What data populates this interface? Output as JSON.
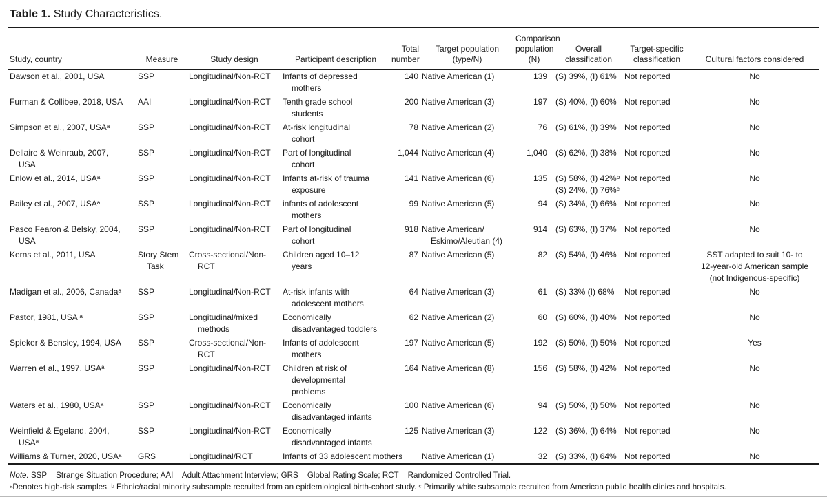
{
  "title": {
    "label": "Table 1.",
    "text": "Study Characteristics."
  },
  "table": {
    "columns": [
      {
        "key": "study",
        "label": "Study, country"
      },
      {
        "key": "measure",
        "label": "Measure"
      },
      {
        "key": "design",
        "label": "Study design"
      },
      {
        "key": "participants",
        "label": "Participant description"
      },
      {
        "key": "total",
        "label": "Total\nnumber"
      },
      {
        "key": "target",
        "label": "Target population\n(type/N)"
      },
      {
        "key": "comparison",
        "label": "Comparison\npopulation\n(N)"
      },
      {
        "key": "overall",
        "label": "Overall\nclassification"
      },
      {
        "key": "target_specific",
        "label": "Target-specific\nclassification"
      },
      {
        "key": "cultural",
        "label": "Cultural factors considered"
      }
    ],
    "rows": [
      {
        "study": "Dawson et al., 2001, USA",
        "measure": "SSP",
        "design": "Longitudinal/Non-RCT",
        "participants": "Infants of depressed\nmothers",
        "total": "140",
        "target": "Native American (1)",
        "comparison": "139",
        "overall": "(S) 39%, (I) 61%",
        "target_specific": "Not reported",
        "cultural": "No"
      },
      {
        "study": "Furman & Collibee, 2018, USA",
        "measure": "AAI",
        "design": "Longitudinal/Non-RCT",
        "participants": "Tenth grade school\nstudents",
        "total": "200",
        "target": "Native American (3)",
        "comparison": "197",
        "overall": "(S) 40%, (I) 60%",
        "target_specific": "Not reported",
        "cultural": "No"
      },
      {
        "study": "Simpson et al., 2007, USAᵃ",
        "measure": "SSP",
        "design": "Longitudinal/Non-RCT",
        "participants": "At-risk longitudinal\ncohort",
        "total": "78",
        "target": "Native American (2)",
        "comparison": "76",
        "overall": "(S) 61%, (I) 39%",
        "target_specific": "Not reported",
        "cultural": "No"
      },
      {
        "study": "Dellaire & Weinraub, 2007,\nUSA",
        "measure": "SSP",
        "design": "Longitudinal/Non-RCT",
        "participants": "Part of longitudinal\ncohort",
        "total": "1,044",
        "target": "Native American (4)",
        "comparison": "1,040",
        "overall": "(S) 62%, (I) 38%",
        "target_specific": "Not reported",
        "cultural": "No"
      },
      {
        "study": "Enlow et al., 2014, USAᵃ",
        "measure": "SSP",
        "design": "Longitudinal/Non-RCT",
        "participants": "Infants at-risk of trauma\nexposure",
        "total": "141",
        "target": "Native American (6)",
        "comparison": "135",
        "overall": "(S) 58%, (I) 42%ᵇ\n(S) 24%, (I) 76%ᶜ",
        "target_specific": "Not reported",
        "cultural": "No"
      },
      {
        "study": "Bailey et al., 2007, USAᵃ",
        "measure": "SSP",
        "design": "Longitudinal/Non-RCT",
        "participants": "infants of adolescent\nmothers",
        "total": "99",
        "target": "Native American (5)",
        "comparison": "94",
        "overall": "(S) 34%, (I) 66%",
        "target_specific": "Not reported",
        "cultural": "No"
      },
      {
        "study": "Pasco Fearon & Belsky, 2004,\nUSA",
        "measure": "SSP",
        "design": "Longitudinal/Non-RCT",
        "participants": "Part of longitudinal\ncohort",
        "total": "918",
        "target": "Native American/\nEskimo/Aleutian (4)",
        "comparison": "914",
        "overall": "(S) 63%, (I) 37%",
        "target_specific": "Not reported",
        "cultural": "No"
      },
      {
        "study": "Kerns et al., 2011, USA",
        "measure": "Story Stem\nTask",
        "design": "Cross-sectional/Non-\nRCT",
        "participants": "Children aged 10–12\nyears",
        "total": "87",
        "target": "Native American (5)",
        "comparison": "82",
        "overall": "(S) 54%, (I) 46%",
        "target_specific": "Not reported",
        "cultural": "SST adapted to suit 10- to\n12-year-old American sample\n(not Indigenous-specific)"
      },
      {
        "study": "Madigan et al., 2006, Canadaᵃ",
        "measure": "SSP",
        "design": "Longitudinal/Non-RCT",
        "participants": "At-risk infants with\nadolescent mothers",
        "total": "64",
        "target": "Native American (3)",
        "comparison": "61",
        "overall": "(S) 33% (I) 68%",
        "target_specific": "Not reported",
        "cultural": "No"
      },
      {
        "study": "Pastor, 1981, USA ᵃ",
        "measure": "SSP",
        "design": "Longitudinal/mixed\nmethods",
        "participants": "Economically\ndisadvantaged toddlers",
        "total": "62",
        "target": "Native American (2)",
        "comparison": "60",
        "overall": "(S) 60%, (I) 40%",
        "target_specific": "Not reported",
        "cultural": "No"
      },
      {
        "study": "Spieker & Bensley, 1994, USA",
        "measure": "SSP",
        "design": "Cross-sectional/Non-\nRCT",
        "participants": "Infants of adolescent\nmothers",
        "total": "197",
        "target": "Native American (5)",
        "comparison": "192",
        "overall": "(S) 50%, (I) 50%",
        "target_specific": "Not reported",
        "cultural": "Yes"
      },
      {
        "study": "Warren et al., 1997, USAᵃ",
        "measure": "SSP",
        "design": "Longitudinal/Non-RCT",
        "participants": "Children at risk of\ndevelopmental\nproblems",
        "total": "164",
        "target": "Native American (8)",
        "comparison": "156",
        "overall": "(S) 58%, (I) 42%",
        "target_specific": "Not reported",
        "cultural": "No"
      },
      {
        "study": "Waters et al., 1980, USAᵃ",
        "measure": "SSP",
        "design": "Longitudinal/Non-RCT",
        "participants": "Economically\ndisadvantaged infants",
        "total": "100",
        "target": "Native American (6)",
        "comparison": "94",
        "overall": "(S) 50%, (I) 50%",
        "target_specific": "Not reported",
        "cultural": "No"
      },
      {
        "study": "Weinfield & Egeland, 2004,\nUSAᵃ",
        "measure": "SSP",
        "design": "Longitudinal/Non-RCT",
        "participants": "Economically\ndisadvantaged infants",
        "total": "125",
        "target": "Native American (3)",
        "comparison": "122",
        "overall": "(S) 36%, (I) 64%",
        "target_specific": "Not reported",
        "cultural": "No"
      },
      {
        "study": "Williams & Turner, 2020, USAᵃ",
        "measure": "GRS",
        "design": "Longitudinal/RCT",
        "participants": "Infants of 33 adolescent mothers",
        "total": "",
        "target": "Native American (1)",
        "comparison": "32",
        "overall": "(S) 33%, (I) 64%",
        "target_specific": "Not reported",
        "cultural": "No"
      }
    ]
  },
  "footnotes": {
    "note_label": "Note.",
    "note_body": " SSP = Strange Situation Procedure; AAI = Adult Attachment Interview; GRS = Global Rating Scale; RCT = Randomized Controlled Trial.",
    "line2": "ᵃDenotes high-risk samples. ᵇ Ethnic/racial minority subsample recruited from an epidemiological birth-cohort study. ᶜ Primarily white subsample recruited from American public health clinics and hospitals."
  }
}
